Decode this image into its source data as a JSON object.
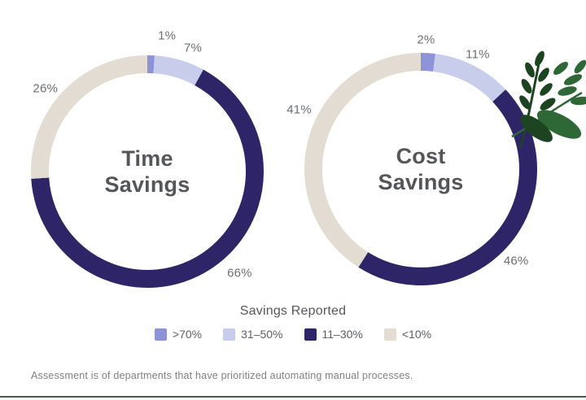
{
  "legend": {
    "title": "Savings Reported",
    "items": [
      {
        "label": ">70%",
        "color": "#8e93d7"
      },
      {
        "label": "31–50%",
        "color": "#c9cdec"
      },
      {
        "label": "11–30%",
        "color": "#2e2569"
      },
      {
        "label": "<10%",
        "color": "#e3dcd2"
      }
    ]
  },
  "footnote": "Assessment is of departments that have prioritized automating manual processes.",
  "decoration": {
    "name": "leaf-illustration",
    "colors": [
      "#1d4421",
      "#2e6836"
    ]
  },
  "chart_data": [
    {
      "type": "donut",
      "title": "Time Savings",
      "center_lines": [
        "Time",
        "Savings"
      ],
      "categories": [
        ">70%",
        "31–50%",
        "11–30%",
        "<10%"
      ],
      "values": [
        1,
        7,
        66,
        26
      ],
      "labels": [
        "1%",
        "7%",
        "66%",
        "26%"
      ],
      "colors": [
        "#8e93d7",
        "#c9cdec",
        "#2e2569",
        "#e3dcd2"
      ],
      "label_nudges": [
        [
          19,
          -2
        ],
        [
          10,
          6
        ],
        [
          25,
          -14
        ],
        [
          -5,
          11
        ]
      ],
      "legend_position": "bottom-shared",
      "start_angle_deg": 0,
      "direction": "clockwise"
    },
    {
      "type": "donut",
      "title": "Cost Savings",
      "center_lines": [
        "Cost",
        "Savings"
      ],
      "categories": [
        ">70%",
        "31–50%",
        "11–30%",
        "<10%"
      ],
      "values": [
        2,
        11,
        46,
        41
      ],
      "labels": [
        "2%",
        "11%",
        "46%",
        "41%"
      ],
      "colors": [
        "#8e93d7",
        "#c9cdec",
        "#2e2569",
        "#e3dcd2"
      ],
      "label_nudges": [
        [
          -4,
          6
        ],
        [
          -5,
          6
        ],
        [
          -10,
          8
        ],
        [
          9,
          -27
        ]
      ],
      "legend_position": "bottom-shared",
      "start_angle_deg": 0,
      "direction": "clockwise"
    }
  ]
}
